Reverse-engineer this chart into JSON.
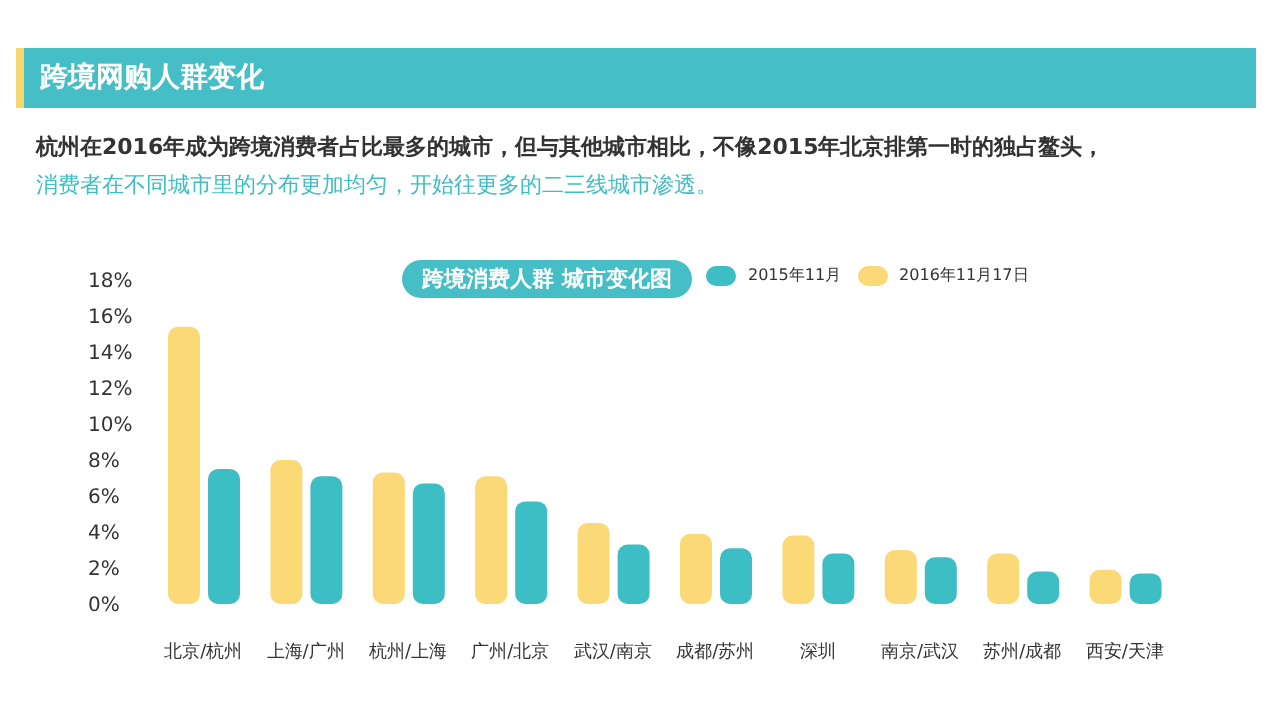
{
  "chart_data": {
    "type": "bar",
    "title": "跨境网购人群变化",
    "subtitle": "杭州在2016年成为跨境消费者占比最多的城市，但与其他城市相比，不像2015年北京排第一时的独占鳌头，",
    "annotations": [
      "消费者在不同城市里的分布更加均匀，开始往更多的二三线城市渗透。",
      "跨境消费人群 城市变化图"
    ],
    "categories": [
      "北京/杭州",
      "上海/广州",
      "杭州/上海",
      "广州/北京",
      "武汉/南京",
      "成都/苏州",
      "深圳",
      "南京/武汉",
      "苏州/成都",
      "西安/天津"
    ],
    "series": [
      {
        "name": "2016年11月17日",
        "color": "#fcd977",
        "values": [
          15.4,
          8.0,
          7.3,
          7.1,
          4.5,
          3.9,
          3.8,
          3.0,
          2.8,
          1.9
        ]
      },
      {
        "name": "2015年11月",
        "color": "#3dbdc4",
        "values": [
          7.5,
          7.1,
          6.7,
          5.7,
          3.3,
          3.1,
          2.8,
          2.6,
          1.8,
          1.7
        ]
      }
    ],
    "ylim": [
      0,
      18
    ],
    "yticks": [
      {
        "value": 0,
        "label": "0%"
      },
      {
        "value": 2,
        "label": "2%"
      },
      {
        "value": 4,
        "label": "4%"
      },
      {
        "value": 6,
        "label": "6%"
      },
      {
        "value": 8,
        "label": "8%"
      },
      {
        "value": 10,
        "label": "10%"
      },
      {
        "value": 12,
        "label": "12%"
      },
      {
        "value": 14,
        "label": "14%"
      },
      {
        "value": 16,
        "label": "16%"
      },
      {
        "value": 18,
        "label": "18%"
      }
    ],
    "grid": false,
    "legend": "top right"
  }
}
